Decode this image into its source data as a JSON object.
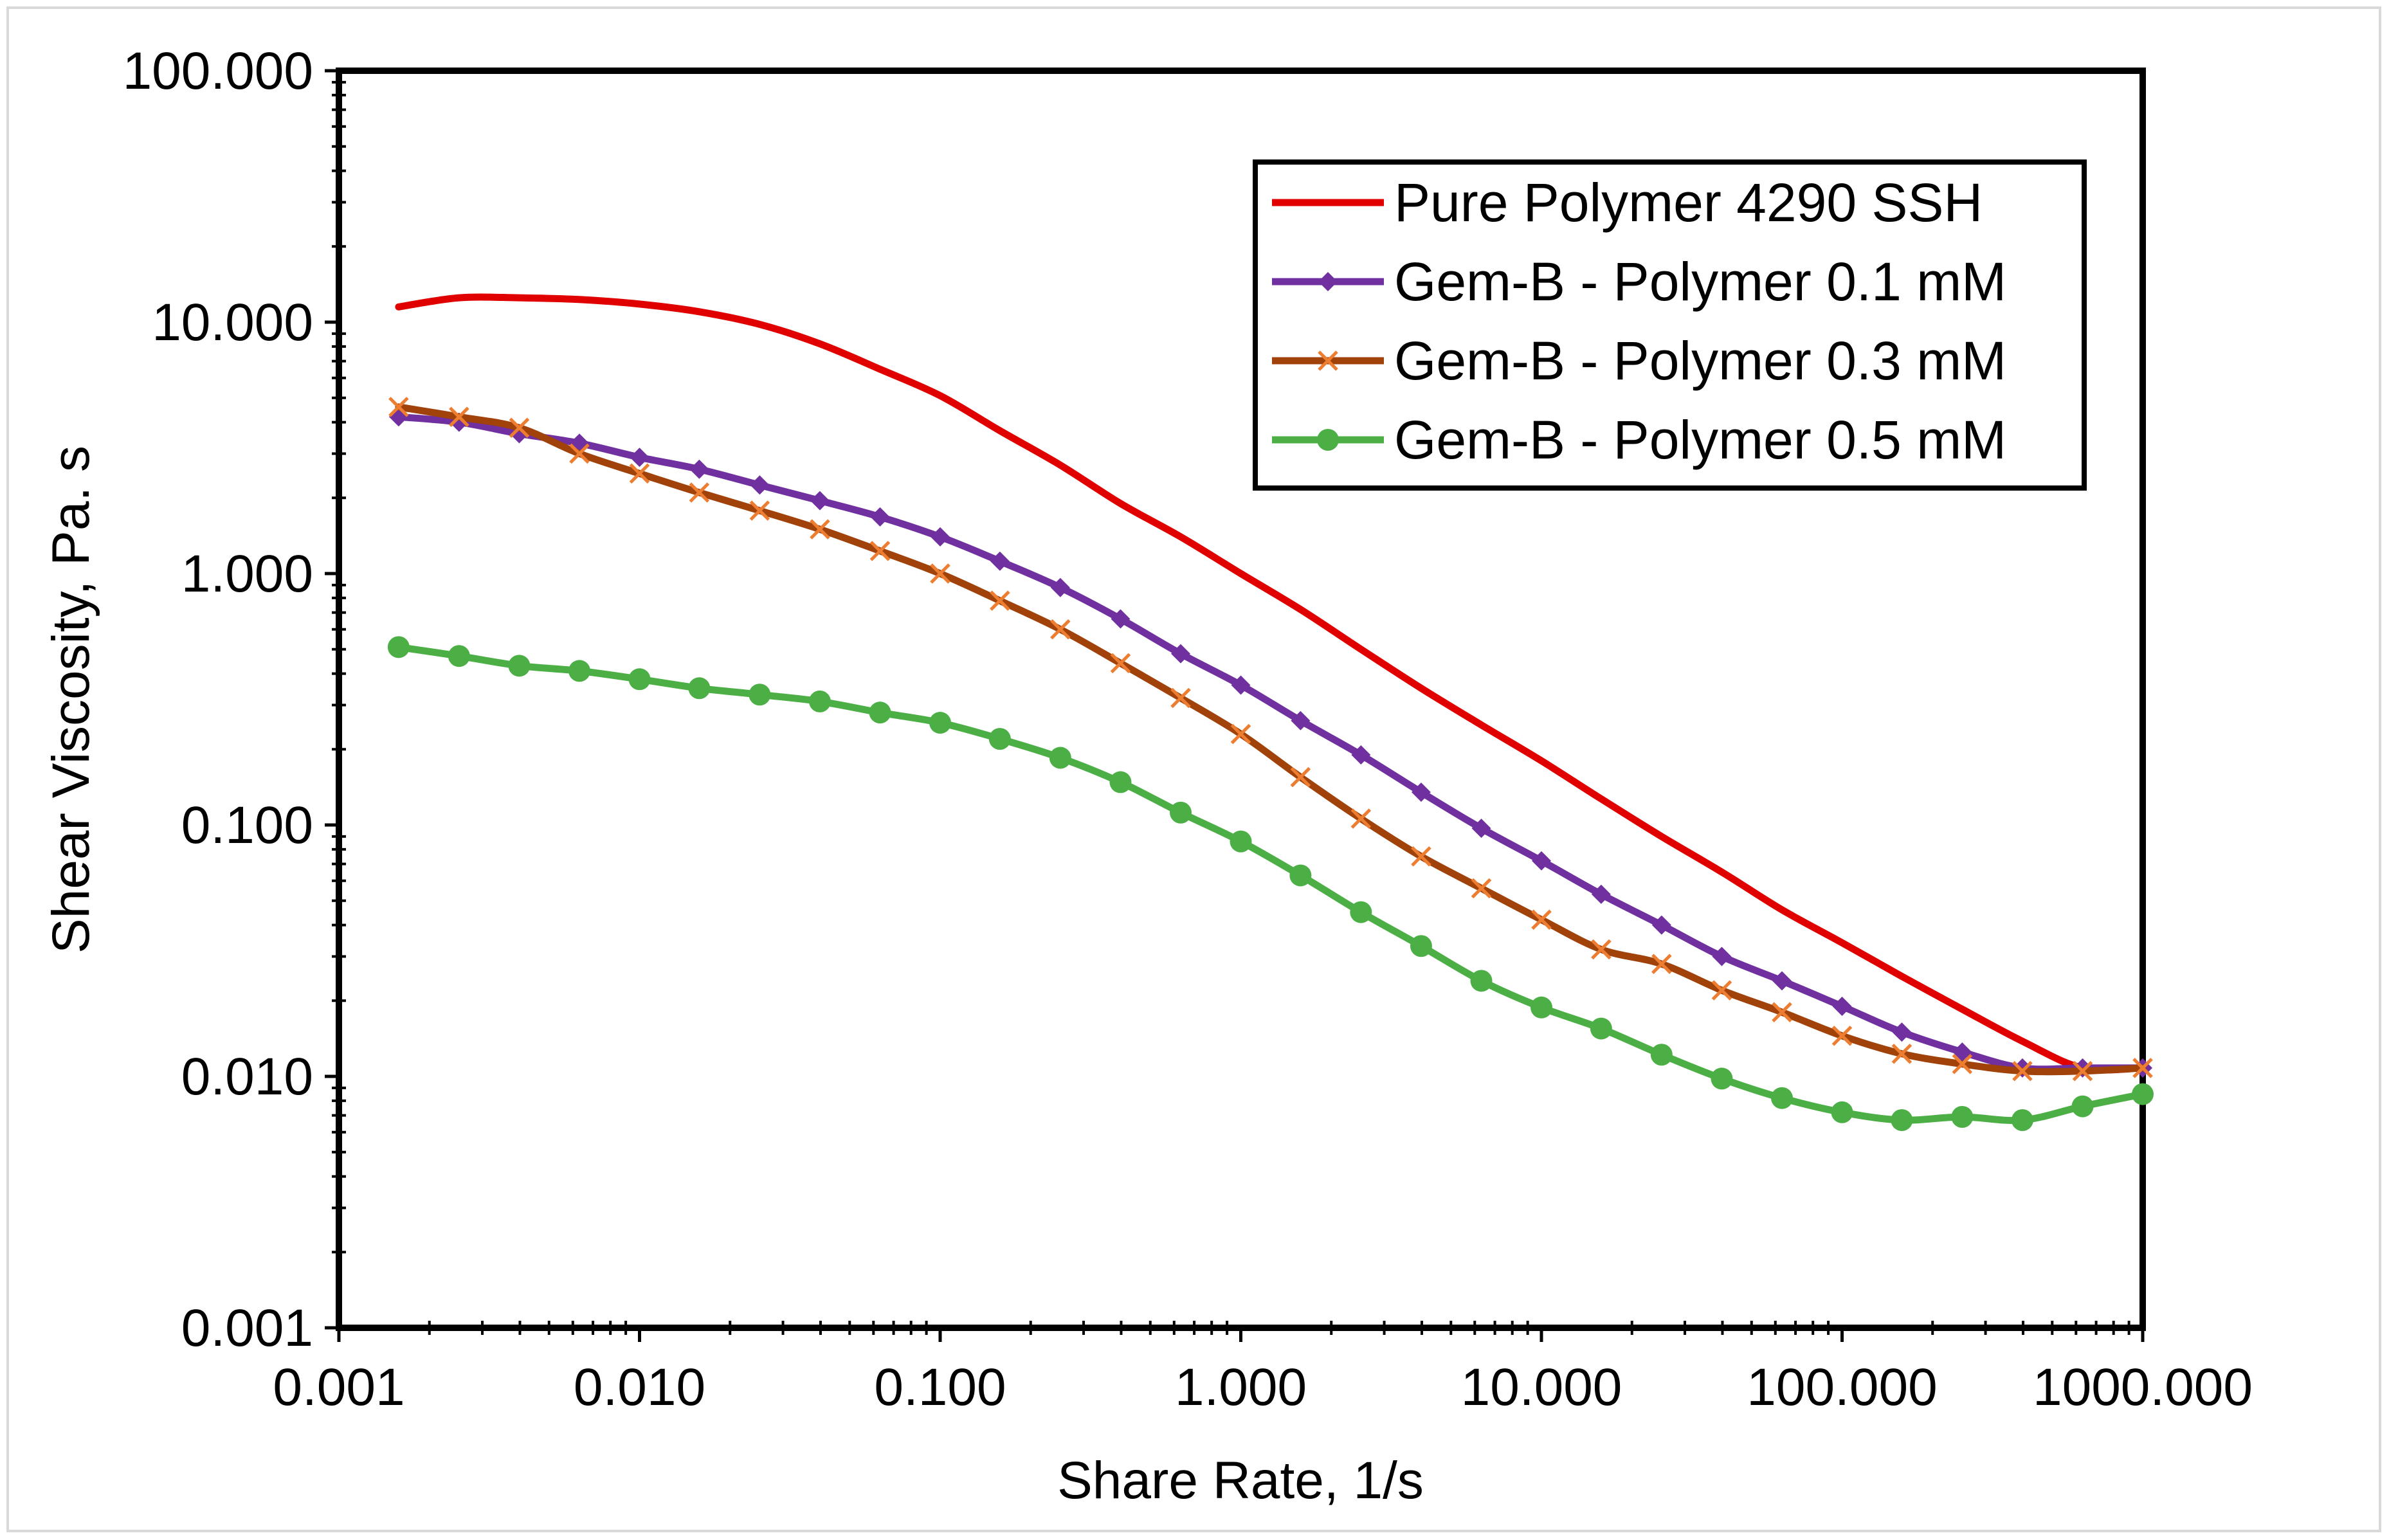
{
  "chart_data": {
    "type": "line",
    "title": "",
    "xlabel": "Share Rate, 1/s",
    "ylabel": "Shear Viscosity, Pa. s",
    "xscale": "log",
    "yscale": "log",
    "xlim": [
      0.001,
      1000
    ],
    "ylim": [
      0.001,
      100
    ],
    "grid": false,
    "legend_position": "top-right",
    "x_tick_labels": [
      "0.001",
      "0.010",
      "0.100",
      "1.000",
      "10.000",
      "100.000",
      "1000.000"
    ],
    "y_tick_labels": [
      "0.001",
      "0.010",
      "0.100",
      "1.000",
      "10.000",
      "100.000"
    ],
    "x": [
      0.00158,
      0.00251,
      0.00398,
      0.00631,
      0.01,
      0.0158,
      0.0251,
      0.0398,
      0.0631,
      0.1,
      0.158,
      0.251,
      0.398,
      0.631,
      1.0,
      1.58,
      2.51,
      3.98,
      6.31,
      10.0,
      15.8,
      25.1,
      39.8,
      63.1,
      100,
      158,
      251,
      398,
      631,
      1000
    ],
    "series": [
      {
        "name": "Pure Polymer 4290 SSH",
        "color": "#e00000",
        "marker": "none",
        "values": [
          11.5,
          12.5,
          12.5,
          12.3,
          11.8,
          11.0,
          9.8,
          8.2,
          6.5,
          5.1,
          3.7,
          2.7,
          1.9,
          1.4,
          1.0,
          0.72,
          0.5,
          0.35,
          0.25,
          0.18,
          0.127,
          0.09,
          0.065,
          0.046,
          0.034,
          0.025,
          0.0185,
          0.0138,
          0.0108,
          0.0108
        ]
      },
      {
        "name": "Gem-B - Polymer 0.1 mM",
        "color": "#7030a0",
        "marker": "diamond",
        "values": [
          4.2,
          4.0,
          3.6,
          3.3,
          2.9,
          2.6,
          2.25,
          1.95,
          1.68,
          1.4,
          1.12,
          0.88,
          0.66,
          0.48,
          0.36,
          0.26,
          0.19,
          0.135,
          0.097,
          0.072,
          0.053,
          0.04,
          0.03,
          0.024,
          0.019,
          0.015,
          0.0125,
          0.0108,
          0.0108,
          0.0108
        ]
      },
      {
        "name": "Gem-B - Polymer 0.3 mM",
        "color": "#a0420a",
        "marker": "x",
        "marker_color": "#ed7d31",
        "values": [
          4.6,
          4.2,
          3.8,
          3.0,
          2.5,
          2.1,
          1.78,
          1.5,
          1.23,
          1.0,
          0.78,
          0.6,
          0.44,
          0.32,
          0.23,
          0.155,
          0.106,
          0.075,
          0.056,
          0.042,
          0.032,
          0.028,
          0.022,
          0.018,
          0.0145,
          0.0123,
          0.0112,
          0.0105,
          0.0105,
          0.0108
        ]
      },
      {
        "name": "Gem-B - Polymer 0.5 mM",
        "color": "#4caf46",
        "marker": "circle",
        "values": [
          0.51,
          0.47,
          0.43,
          0.41,
          0.38,
          0.35,
          0.33,
          0.31,
          0.28,
          0.255,
          0.22,
          0.185,
          0.148,
          0.112,
          0.086,
          0.063,
          0.045,
          0.033,
          0.024,
          0.0188,
          0.0155,
          0.0122,
          0.0098,
          0.0082,
          0.0072,
          0.0067,
          0.0069,
          0.0067,
          0.0076,
          0.0085
        ]
      }
    ]
  }
}
